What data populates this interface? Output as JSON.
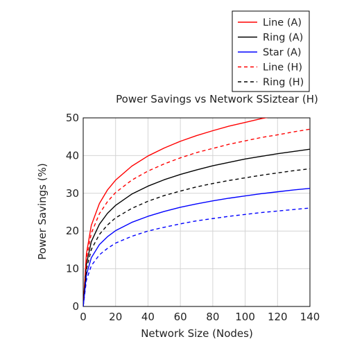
{
  "chart_data": {
    "type": "line",
    "title": "Power Savings vs Network SSiztear (H)",
    "xlabel": "Network Size (Nodes)",
    "ylabel": "Power Savings (%)",
    "xlim": [
      0,
      140
    ],
    "ylim": [
      0,
      50
    ],
    "xticks": [
      0,
      20,
      40,
      60,
      80,
      100,
      120,
      140
    ],
    "yticks": [
      0,
      10,
      20,
      30,
      40,
      50
    ],
    "grid": true,
    "legend_position": "top-right",
    "x": [
      0,
      2,
      5,
      10,
      15,
      20,
      30,
      40,
      50,
      60,
      70,
      80,
      90,
      100,
      110,
      120,
      130,
      140
    ],
    "series": [
      {
        "name": "Line (A)",
        "color": "#ff0000",
        "style": "solid",
        "values": [
          0,
          14.0,
          21.5,
          27.3,
          30.9,
          33.5,
          37.2,
          39.9,
          42.0,
          43.8,
          45.3,
          46.6,
          47.8,
          48.8,
          49.8,
          50.6,
          51.4,
          52.2
        ]
      },
      {
        "name": "Ring (A)",
        "color": "#000000",
        "style": "solid",
        "values": [
          0,
          11.2,
          17.2,
          21.8,
          24.7,
          26.8,
          29.8,
          31.9,
          33.6,
          35.0,
          36.2,
          37.3,
          38.2,
          39.1,
          39.8,
          40.5,
          41.1,
          41.7
        ]
      },
      {
        "name": "Star (A)",
        "color": "#0000ff",
        "style": "solid",
        "values": [
          0,
          8.4,
          12.9,
          16.4,
          18.5,
          20.1,
          22.3,
          23.9,
          25.2,
          26.3,
          27.2,
          28.0,
          28.7,
          29.3,
          29.9,
          30.4,
          30.9,
          31.3
        ]
      },
      {
        "name": "Line (H)",
        "color": "#ff0000",
        "style": "dashed",
        "values": [
          0,
          12.6,
          19.4,
          24.6,
          27.8,
          30.2,
          33.5,
          35.9,
          37.8,
          39.4,
          40.8,
          41.9,
          43.0,
          43.9,
          44.8,
          45.5,
          46.3,
          47.0
        ]
      },
      {
        "name": "Ring (H)",
        "color": "#000000",
        "style": "dashed",
        "values": [
          0,
          9.8,
          15.1,
          19.1,
          21.6,
          23.5,
          26.0,
          27.9,
          29.4,
          30.6,
          31.7,
          32.6,
          33.4,
          34.1,
          34.8,
          35.4,
          36.0,
          36.5
        ]
      },
      {
        "name": "",
        "color": "#0000ff",
        "style": "dashed",
        "values": [
          0,
          7.0,
          10.8,
          13.7,
          15.4,
          16.8,
          18.6,
          20.0,
          21.0,
          21.9,
          22.7,
          23.3,
          23.9,
          24.4,
          24.9,
          25.3,
          25.7,
          26.1
        ]
      }
    ]
  }
}
